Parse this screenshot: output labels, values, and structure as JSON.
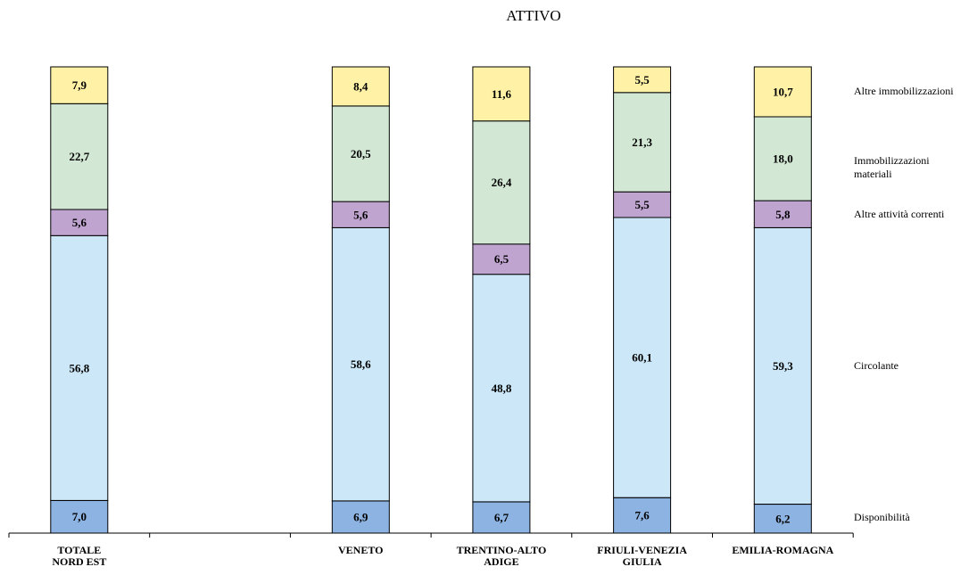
{
  "chart_data": {
    "type": "bar",
    "stacked": true,
    "title": "ATTIVO",
    "categories": [
      [
        "TOTALE",
        "NORD EST"
      ],
      [
        ""
      ],
      [
        "VENETO"
      ],
      [
        "TRENTINO-ALTO",
        "ADIGE"
      ],
      [
        "FRIULI-VENEZIA",
        "GIULIA"
      ],
      [
        "EMILIA-ROMAGNA"
      ]
    ],
    "series": [
      {
        "name": "Disponibilità",
        "color": "#8DB3E2",
        "values": [
          7.0,
          null,
          6.9,
          6.7,
          7.6,
          6.2
        ],
        "labels": [
          "7,0",
          "",
          "6,9",
          "6,7",
          "7,6",
          "6,2"
        ]
      },
      {
        "name": "Circolante",
        "color": "#CCE8F8",
        "values": [
          56.8,
          null,
          58.6,
          48.8,
          60.1,
          59.3
        ],
        "labels": [
          "56,8",
          "",
          "58,6",
          "48,8",
          "60,1",
          "59,3"
        ]
      },
      {
        "name": "Altre attività correnti",
        "color": "#BFA4D0",
        "values": [
          5.6,
          null,
          5.6,
          6.5,
          5.5,
          5.8
        ],
        "labels": [
          "5,6",
          "",
          "5,6",
          "6,5",
          "5,5",
          "5,8"
        ]
      },
      {
        "name": "Immobilizzazioni materiali",
        "color": "#D2E8D4",
        "values": [
          22.7,
          null,
          20.5,
          26.4,
          21.3,
          18.0
        ],
        "labels": [
          "22,7",
          "",
          "20,5",
          "26,4",
          "21,3",
          "18,0"
        ]
      },
      {
        "name": "Altre immobilizzazioni",
        "color": "#FFF2A6",
        "values": [
          7.9,
          null,
          8.4,
          11.6,
          5.5,
          10.7
        ],
        "labels": [
          "7,9",
          "",
          "8,4",
          "11,6",
          "5,5",
          "10,7"
        ]
      }
    ],
    "legend_position": "right",
    "ylim": [
      0,
      100
    ],
    "grid": false
  }
}
